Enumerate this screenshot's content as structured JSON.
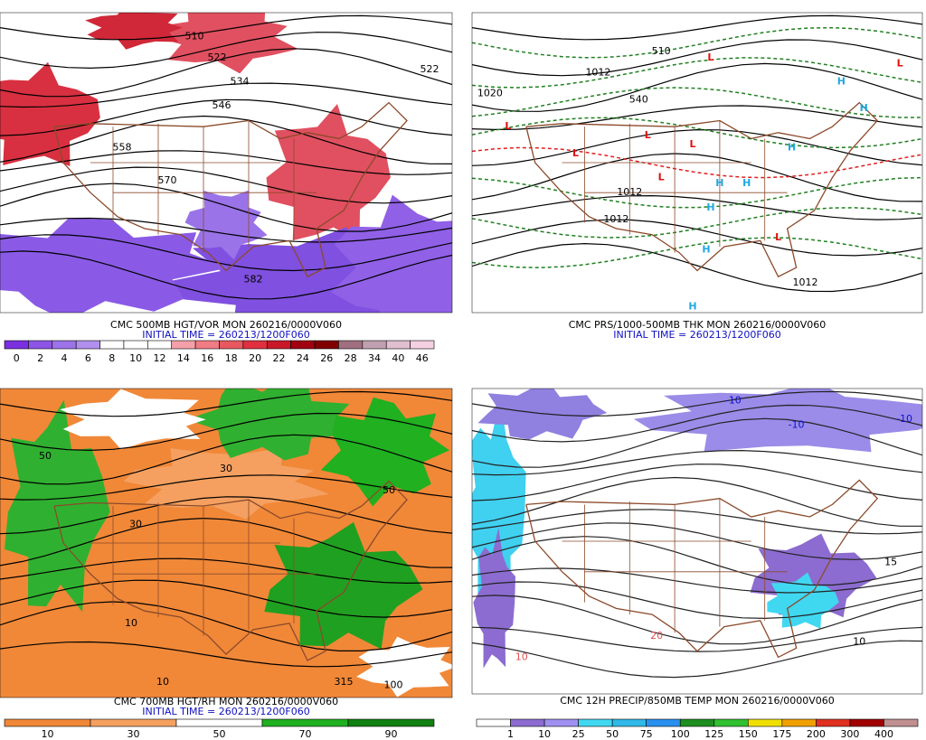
{
  "panels": [
    {
      "title": "CMC 500MB HGT/VOR MON 260216/0000V060",
      "subtitle": "INITIAL TIME = 260213/1200F060",
      "map_labels": [
        "510",
        "522",
        "534",
        "546",
        "558",
        "570",
        "582",
        "522"
      ],
      "colorbar": {
        "labels": [
          0,
          2,
          4,
          6,
          8,
          10,
          12,
          14,
          16,
          18,
          20,
          22,
          24,
          26,
          28,
          34,
          40,
          46
        ],
        "colors": [
          "#7a2fe0",
          "#8c55e6",
          "#9c73e8",
          "#b090ec",
          "#ffffff",
          "#ffffff",
          "#ffffff",
          "#f4a0a8",
          "#f07c84",
          "#e85860",
          "#e03040",
          "#c81828",
          "#a00010",
          "#800000",
          "#a07080",
          "#c0a0b0",
          "#e0c0d0",
          "#f5d0e0"
        ]
      }
    },
    {
      "title": "CMC PRS/1000-500MB THK MON 260216/0000V060",
      "subtitle": "INITIAL TIME = 260213/1200F060",
      "map_labels": [
        "L",
        "L",
        "L",
        "L",
        "L",
        "L",
        "L",
        "L",
        "H",
        "H",
        "H",
        "H",
        "H",
        "H",
        "H",
        "H",
        "1012",
        "1012",
        "1012",
        "1020",
        "1012",
        "540",
        "510"
      ]
    },
    {
      "title": "CMC 700MB HGT/RH MON 260216/0000V060",
      "subtitle": "INITIAL TIME = 260213/1200F060",
      "map_labels": [
        "50",
        "30",
        "10",
        "50",
        "30",
        "10",
        "315",
        "100"
      ],
      "colorbar": {
        "labels": [
          10,
          30,
          50,
          70,
          90
        ],
        "colors": [
          "#f08838",
          "#f5a060",
          "#ffffff",
          "#20b020",
          "#108010"
        ]
      }
    },
    {
      "title": "CMC 12H PRECIP/850MB TEMP MON 260216/0000V060",
      "map_labels": [
        "-10",
        "-10",
        "10",
        "20",
        "15",
        "10",
        "-10"
      ],
      "colorbar": {
        "labels": [
          1,
          10,
          25,
          50,
          75,
          100,
          125,
          150,
          175,
          200,
          300,
          400
        ],
        "colors": [
          "#ffffff",
          "#8c6cd0",
          "#a090f0",
          "#40d8f0",
          "#30b8e8",
          "#2a90f0",
          "#1e8f1e",
          "#30c030",
          "#f0e000",
          "#f0a000",
          "#e03020",
          "#a00000",
          "#c09090"
        ]
      }
    }
  ]
}
